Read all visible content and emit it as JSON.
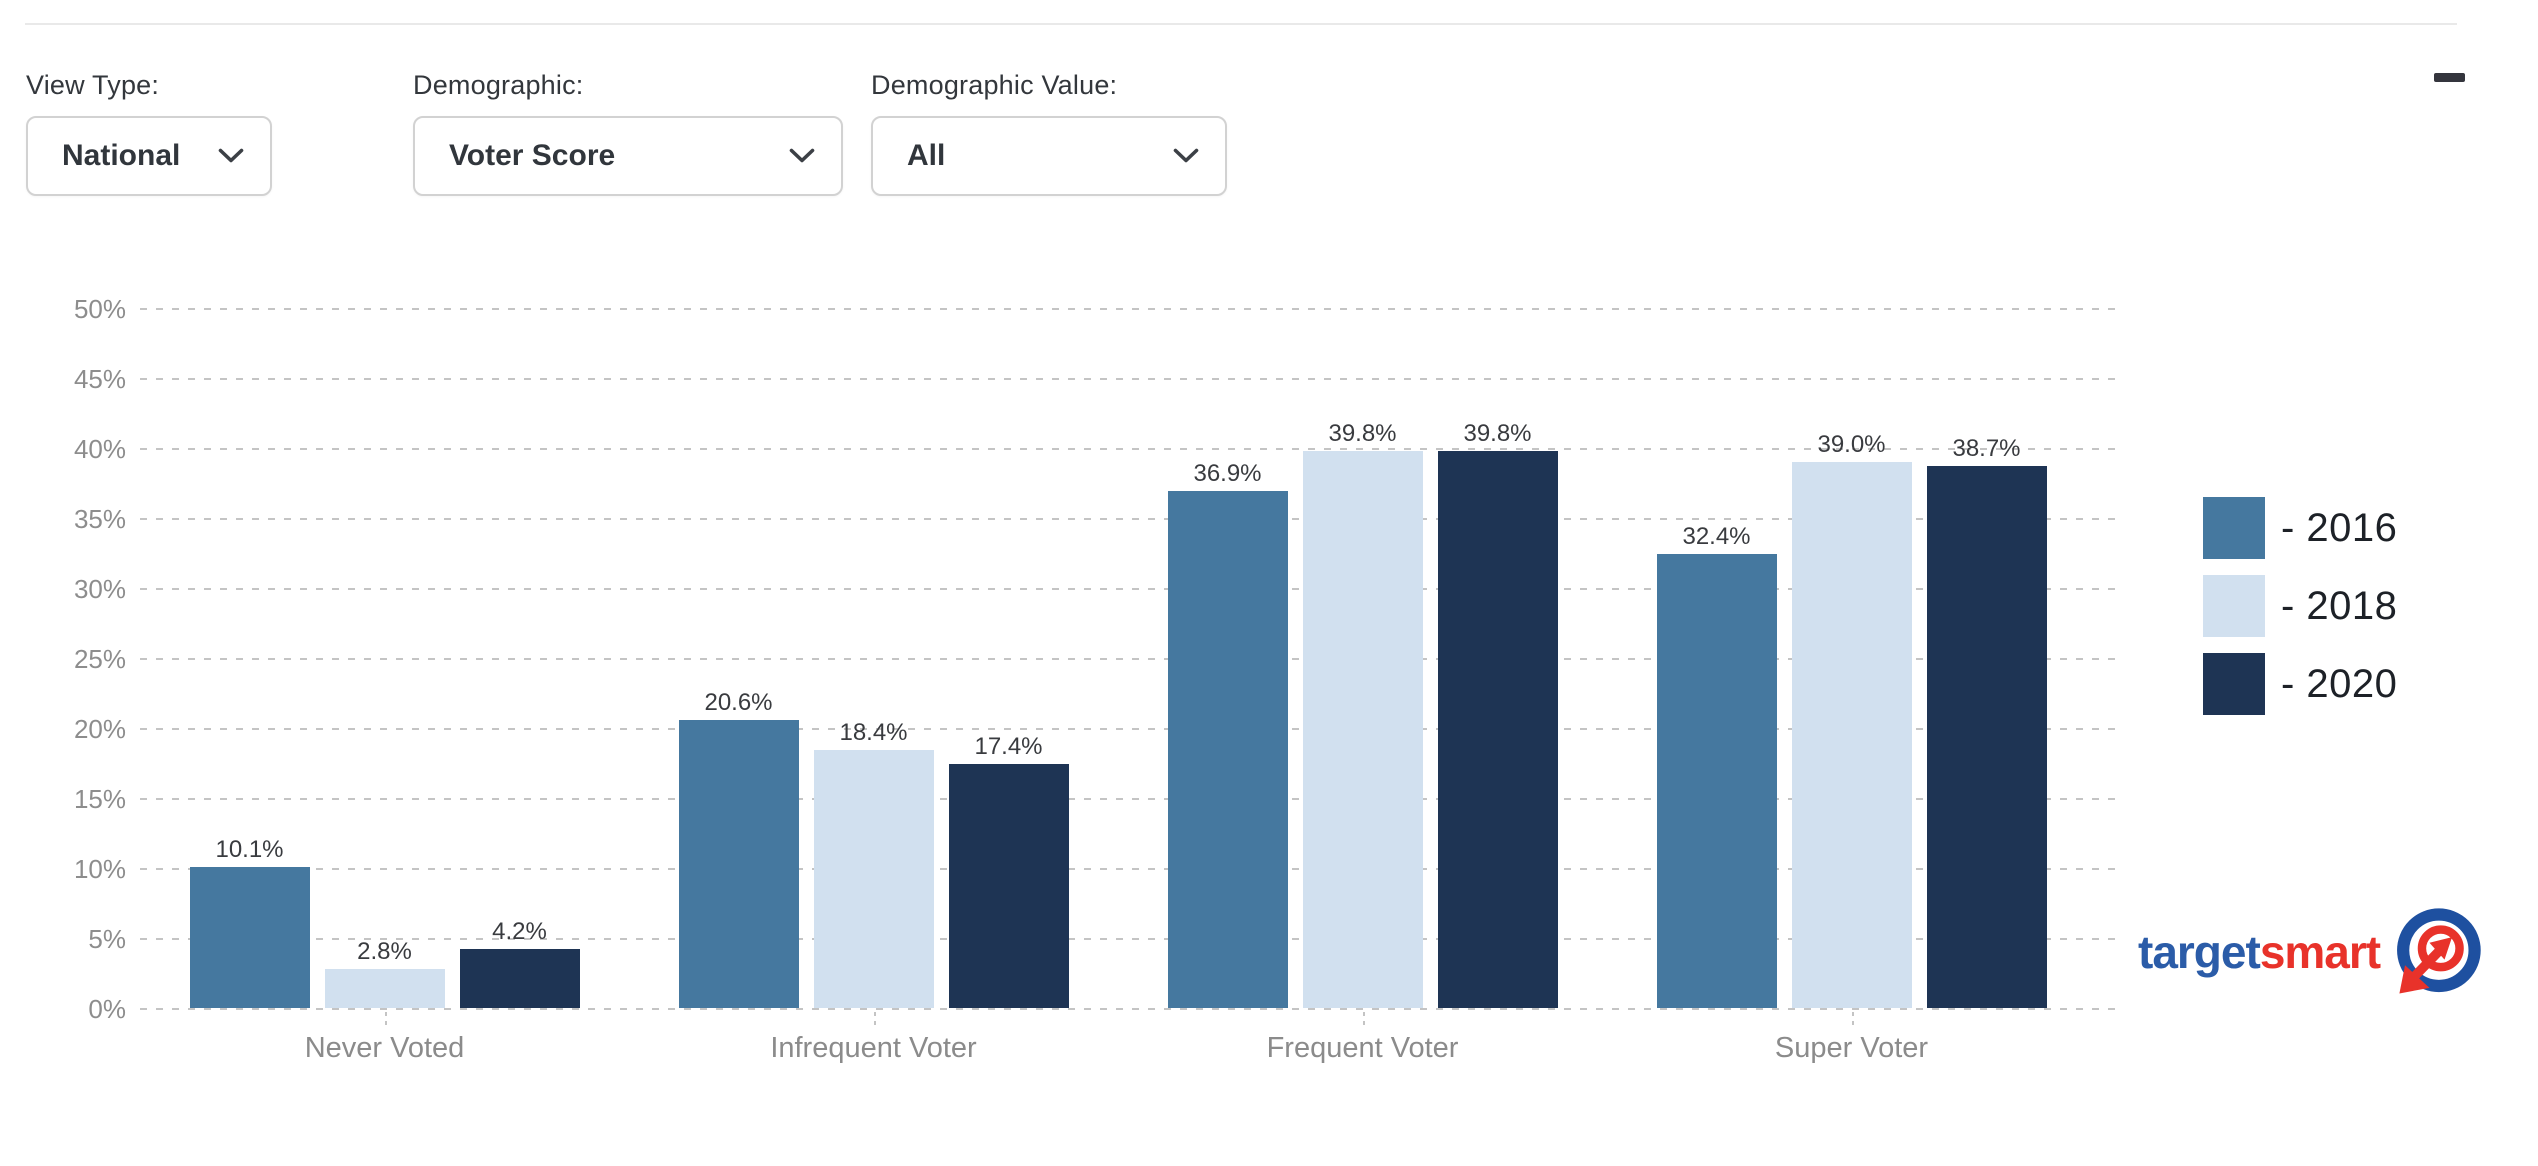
{
  "controls": {
    "view_type": {
      "label": "View Type:",
      "value": "National"
    },
    "demographic": {
      "label": "Demographic:",
      "value": "Voter Score"
    },
    "demographic_value": {
      "label": "Demographic Value:",
      "value": "All"
    }
  },
  "chart_data": {
    "type": "bar",
    "title": "",
    "xlabel": "",
    "ylabel": "",
    "categories": [
      "Never Voted",
      "Infrequent Voter",
      "Frequent Voter",
      "Super Voter"
    ],
    "series": [
      {
        "name": "2016",
        "legend_label": "- 2016",
        "color": "#45789F",
        "values": [
          10.1,
          20.6,
          36.9,
          32.4
        ]
      },
      {
        "name": "2018",
        "legend_label": "- 2018",
        "color": "#D1E0EF",
        "values": [
          2.8,
          18.4,
          39.8,
          39.0
        ]
      },
      {
        "name": "2020",
        "legend_label": "- 2020",
        "color": "#1E3454",
        "values": [
          4.2,
          17.4,
          39.8,
          38.7
        ]
      }
    ],
    "y_ticks": [
      0,
      5,
      10,
      15,
      20,
      25,
      30,
      35,
      40,
      45,
      50
    ],
    "y_tick_suffix": "%",
    "ylim": [
      0,
      50
    ],
    "grid": "dashed horizontal",
    "legend_position": "right",
    "data_label_format": "0.1%"
  },
  "logo": {
    "text_blue": "target",
    "text_red": "smart",
    "blue_color": "#2B5CA8",
    "red_color": "#E8322A"
  },
  "colors": {
    "grid": "#C4C4C4",
    "axis_text": "#8D8D8D",
    "data_label_text": "#393B3F"
  }
}
